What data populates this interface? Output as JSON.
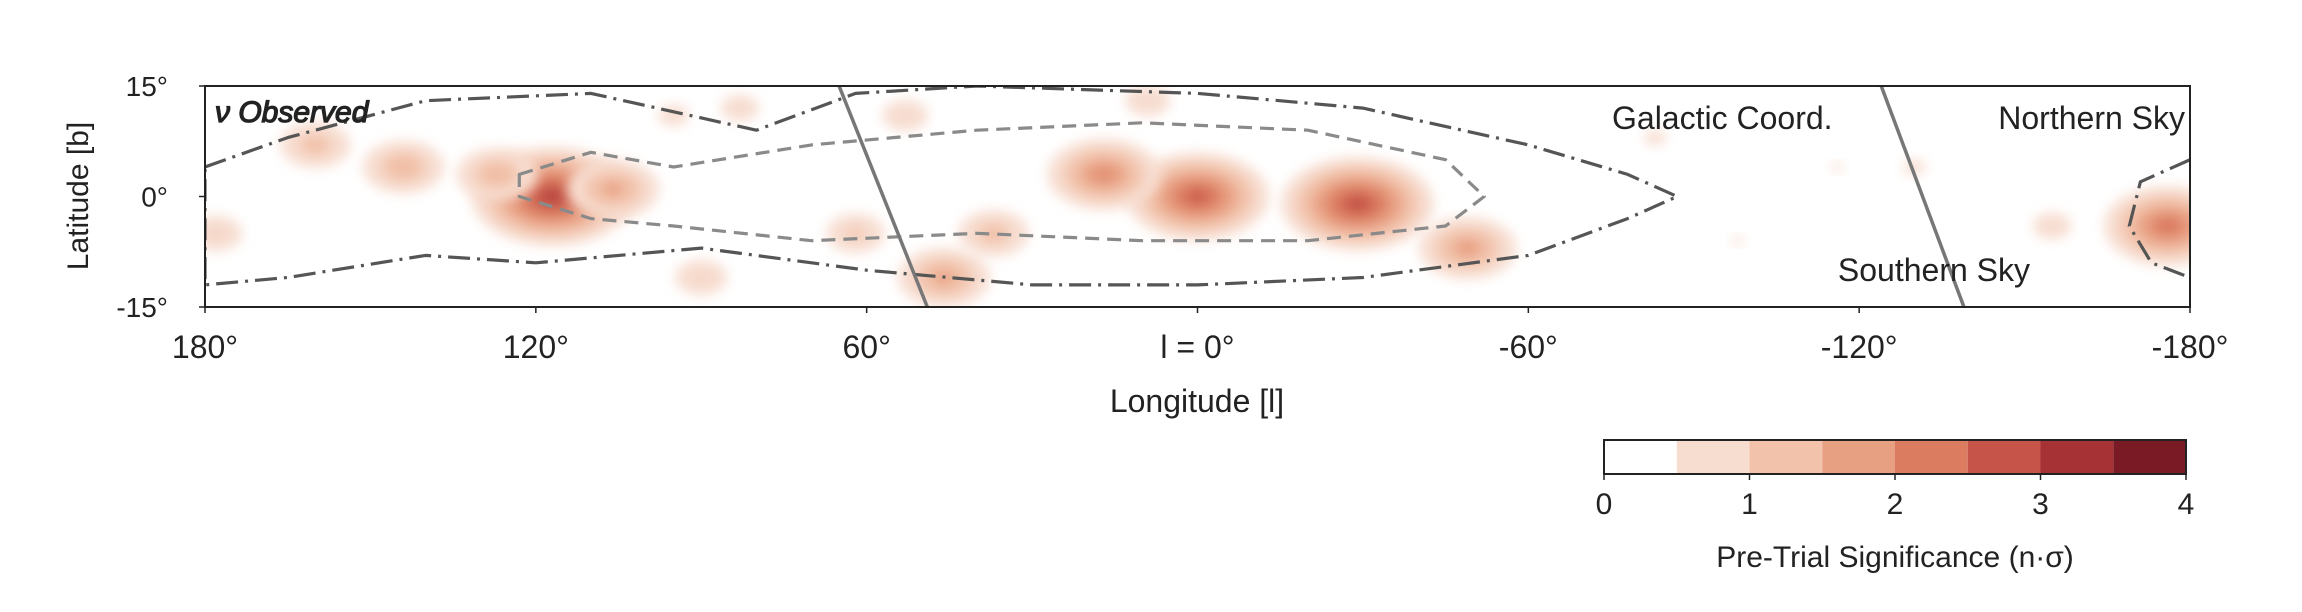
{
  "chart_data": {
    "type": "heatmap",
    "title": "",
    "projection": "galactic skymap strip",
    "coordinate_system_label": "Galactic Coord.",
    "overlay_label": "ν Observed",
    "xlabel": "Longitude [l]",
    "ylabel": "Latitude [b]",
    "xlim": [
      180,
      -180
    ],
    "ylim": [
      -15,
      15
    ],
    "x_ticks": [
      {
        "value": 180,
        "label": "180°"
      },
      {
        "value": 120,
        "label": "120°"
      },
      {
        "value": 60,
        "label": "60°"
      },
      {
        "value": 0,
        "label": "l = 0°"
      },
      {
        "value": -60,
        "label": "-60°"
      },
      {
        "value": -120,
        "label": "-120°"
      },
      {
        "value": -180,
        "label": "-180°"
      }
    ],
    "y_ticks": [
      {
        "value": 15,
        "label": "15°"
      },
      {
        "value": 0,
        "label": "0°"
      },
      {
        "value": -15,
        "label": "-15°"
      }
    ],
    "regions": [
      {
        "label": "Northern Sky",
        "position": "top-right"
      },
      {
        "label": "Southern Sky",
        "position": "bottom-right"
      }
    ],
    "horizon_boundary_longitudes": [
      {
        "l_at_top": 65,
        "l_at_bottom": 49
      },
      {
        "l_at_top": -124,
        "l_at_bottom": -139
      }
    ],
    "colorbar": {
      "label": "Pre-Trial Significance (n·σ)",
      "min": 0,
      "max": 4,
      "ticks": [
        0,
        1,
        2,
        3,
        4
      ],
      "bin_edges": [
        0,
        0.5,
        1,
        1.5,
        2,
        2.5,
        3,
        3.5,
        4
      ],
      "colors": [
        "#ffffff",
        "#f7ddd0",
        "#f2c2aa",
        "#e8a083",
        "#db7c61",
        "#c65449",
        "#a63236",
        "#7a1a24"
      ],
      "position": "bottom-right"
    },
    "hotspots": [
      {
        "l": 117,
        "b": 0,
        "significance": 3.2
      },
      {
        "l": 0,
        "b": 0,
        "significance": 2.8
      },
      {
        "l": 17,
        "b": 3,
        "significance": 2.2
      },
      {
        "l": -29,
        "b": -1,
        "significance": 3.0
      },
      {
        "l": 46,
        "b": -11,
        "significance": 1.8
      },
      {
        "l": 37,
        "b": -5,
        "significance": 1.4
      },
      {
        "l": -49,
        "b": -7,
        "significance": 1.9
      },
      {
        "l": -176,
        "b": -4,
        "significance": 2.5
      },
      {
        "l": 106,
        "b": 1,
        "significance": 1.8
      },
      {
        "l": 127,
        "b": 3,
        "significance": 1.6
      },
      {
        "l": 144,
        "b": 4,
        "significance": 1.6
      },
      {
        "l": 160,
        "b": 7,
        "significance": 1.4
      },
      {
        "l": 178,
        "b": -5,
        "significance": 1.1
      },
      {
        "l": 53,
        "b": 11,
        "significance": 1.0
      },
      {
        "l": 83,
        "b": 12,
        "significance": 0.9
      },
      {
        "l": 95,
        "b": 11,
        "significance": 0.8
      },
      {
        "l": 9,
        "b": 13,
        "significance": 1.0
      },
      {
        "l": -83,
        "b": 8,
        "significance": 0.7
      },
      {
        "l": -116,
        "b": 4,
        "significance": 0.6
      },
      {
        "l": -98,
        "b": -6,
        "significance": 0.6
      },
      {
        "l": -130,
        "b": 4,
        "significance": 0.7
      },
      {
        "l": -155,
        "b": -4,
        "significance": 0.9
      },
      {
        "l": 62,
        "b": -5,
        "significance": 1.2
      },
      {
        "l": 90,
        "b": -11,
        "significance": 1.1
      }
    ],
    "contours": [
      {
        "style": "dash-dot",
        "description": "outer galactic plane contour",
        "upper": [
          [
            180,
            4
          ],
          [
            165,
            8
          ],
          [
            140,
            13
          ],
          [
            110,
            14
          ],
          [
            80,
            9
          ],
          [
            62,
            14
          ],
          [
            40,
            15
          ],
          [
            0,
            14
          ],
          [
            -30,
            12
          ],
          [
            -60,
            7
          ],
          [
            -78,
            3
          ],
          [
            -87,
            0
          ]
        ],
        "lower": [
          [
            -87,
            0
          ],
          [
            -78,
            -3
          ],
          [
            -60,
            -8
          ],
          [
            -30,
            -11
          ],
          [
            0,
            -12
          ],
          [
            30,
            -12
          ],
          [
            60,
            -10
          ],
          [
            90,
            -7
          ],
          [
            120,
            -9
          ],
          [
            140,
            -8
          ],
          [
            165,
            -11
          ],
          [
            180,
            -12
          ]
        ]
      },
      {
        "style": "dashed",
        "description": "inner galactic plane contour",
        "upper": [
          [
            123,
            3
          ],
          [
            110,
            6
          ],
          [
            95,
            4
          ],
          [
            70,
            7
          ],
          [
            40,
            9
          ],
          [
            10,
            10
          ],
          [
            -20,
            9
          ],
          [
            -45,
            5
          ],
          [
            -52,
            0
          ]
        ],
        "lower": [
          [
            -52,
            0
          ],
          [
            -45,
            -4
          ],
          [
            -20,
            -6
          ],
          [
            10,
            -6
          ],
          [
            40,
            -5
          ],
          [
            70,
            -6
          ],
          [
            95,
            -4
          ],
          [
            110,
            -3
          ],
          [
            123,
            0
          ]
        ]
      },
      {
        "style": "dash-dot",
        "description": "contour near l = -180",
        "points": [
          [
            -180,
            5
          ],
          [
            -171,
            2
          ],
          [
            -169,
            -4
          ],
          [
            -173,
            -9
          ],
          [
            -180,
            -11
          ]
        ]
      }
    ]
  }
}
